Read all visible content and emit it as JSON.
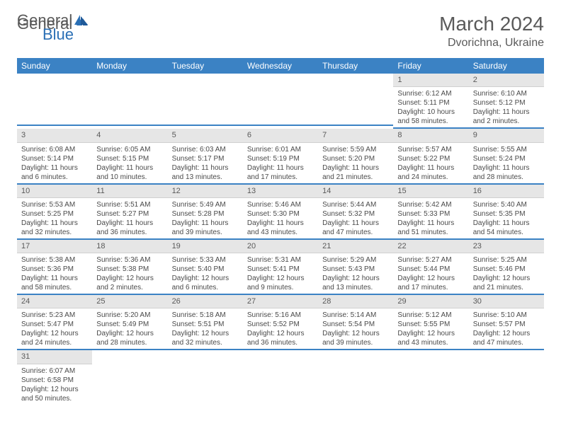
{
  "logo": {
    "word1": "General",
    "word2": "Blue"
  },
  "header": {
    "title": "March 2024",
    "location": "Dvorichna, Ukraine"
  },
  "colors": {
    "header_bg": "#3b82c4",
    "header_fg": "#ffffff",
    "daynum_bg": "#e6e6e6",
    "rule": "#3b82c4",
    "text": "#4a4a4a",
    "title": "#5a5a5a"
  },
  "weekdays": [
    "Sunday",
    "Monday",
    "Tuesday",
    "Wednesday",
    "Thursday",
    "Friday",
    "Saturday"
  ],
  "weeks": [
    [
      {
        "n": "",
        "lines": []
      },
      {
        "n": "",
        "lines": []
      },
      {
        "n": "",
        "lines": []
      },
      {
        "n": "",
        "lines": []
      },
      {
        "n": "",
        "lines": []
      },
      {
        "n": "1",
        "lines": [
          "Sunrise: 6:12 AM",
          "Sunset: 5:11 PM",
          "Daylight: 10 hours",
          "and 58 minutes."
        ]
      },
      {
        "n": "2",
        "lines": [
          "Sunrise: 6:10 AM",
          "Sunset: 5:12 PM",
          "Daylight: 11 hours",
          "and 2 minutes."
        ]
      }
    ],
    [
      {
        "n": "3",
        "lines": [
          "Sunrise: 6:08 AM",
          "Sunset: 5:14 PM",
          "Daylight: 11 hours",
          "and 6 minutes."
        ]
      },
      {
        "n": "4",
        "lines": [
          "Sunrise: 6:05 AM",
          "Sunset: 5:15 PM",
          "Daylight: 11 hours",
          "and 10 minutes."
        ]
      },
      {
        "n": "5",
        "lines": [
          "Sunrise: 6:03 AM",
          "Sunset: 5:17 PM",
          "Daylight: 11 hours",
          "and 13 minutes."
        ]
      },
      {
        "n": "6",
        "lines": [
          "Sunrise: 6:01 AM",
          "Sunset: 5:19 PM",
          "Daylight: 11 hours",
          "and 17 minutes."
        ]
      },
      {
        "n": "7",
        "lines": [
          "Sunrise: 5:59 AM",
          "Sunset: 5:20 PM",
          "Daylight: 11 hours",
          "and 21 minutes."
        ]
      },
      {
        "n": "8",
        "lines": [
          "Sunrise: 5:57 AM",
          "Sunset: 5:22 PM",
          "Daylight: 11 hours",
          "and 24 minutes."
        ]
      },
      {
        "n": "9",
        "lines": [
          "Sunrise: 5:55 AM",
          "Sunset: 5:24 PM",
          "Daylight: 11 hours",
          "and 28 minutes."
        ]
      }
    ],
    [
      {
        "n": "10",
        "lines": [
          "Sunrise: 5:53 AM",
          "Sunset: 5:25 PM",
          "Daylight: 11 hours",
          "and 32 minutes."
        ]
      },
      {
        "n": "11",
        "lines": [
          "Sunrise: 5:51 AM",
          "Sunset: 5:27 PM",
          "Daylight: 11 hours",
          "and 36 minutes."
        ]
      },
      {
        "n": "12",
        "lines": [
          "Sunrise: 5:49 AM",
          "Sunset: 5:28 PM",
          "Daylight: 11 hours",
          "and 39 minutes."
        ]
      },
      {
        "n": "13",
        "lines": [
          "Sunrise: 5:46 AM",
          "Sunset: 5:30 PM",
          "Daylight: 11 hours",
          "and 43 minutes."
        ]
      },
      {
        "n": "14",
        "lines": [
          "Sunrise: 5:44 AM",
          "Sunset: 5:32 PM",
          "Daylight: 11 hours",
          "and 47 minutes."
        ]
      },
      {
        "n": "15",
        "lines": [
          "Sunrise: 5:42 AM",
          "Sunset: 5:33 PM",
          "Daylight: 11 hours",
          "and 51 minutes."
        ]
      },
      {
        "n": "16",
        "lines": [
          "Sunrise: 5:40 AM",
          "Sunset: 5:35 PM",
          "Daylight: 11 hours",
          "and 54 minutes."
        ]
      }
    ],
    [
      {
        "n": "17",
        "lines": [
          "Sunrise: 5:38 AM",
          "Sunset: 5:36 PM",
          "Daylight: 11 hours",
          "and 58 minutes."
        ]
      },
      {
        "n": "18",
        "lines": [
          "Sunrise: 5:36 AM",
          "Sunset: 5:38 PM",
          "Daylight: 12 hours",
          "and 2 minutes."
        ]
      },
      {
        "n": "19",
        "lines": [
          "Sunrise: 5:33 AM",
          "Sunset: 5:40 PM",
          "Daylight: 12 hours",
          "and 6 minutes."
        ]
      },
      {
        "n": "20",
        "lines": [
          "Sunrise: 5:31 AM",
          "Sunset: 5:41 PM",
          "Daylight: 12 hours",
          "and 9 minutes."
        ]
      },
      {
        "n": "21",
        "lines": [
          "Sunrise: 5:29 AM",
          "Sunset: 5:43 PM",
          "Daylight: 12 hours",
          "and 13 minutes."
        ]
      },
      {
        "n": "22",
        "lines": [
          "Sunrise: 5:27 AM",
          "Sunset: 5:44 PM",
          "Daylight: 12 hours",
          "and 17 minutes."
        ]
      },
      {
        "n": "23",
        "lines": [
          "Sunrise: 5:25 AM",
          "Sunset: 5:46 PM",
          "Daylight: 12 hours",
          "and 21 minutes."
        ]
      }
    ],
    [
      {
        "n": "24",
        "lines": [
          "Sunrise: 5:23 AM",
          "Sunset: 5:47 PM",
          "Daylight: 12 hours",
          "and 24 minutes."
        ]
      },
      {
        "n": "25",
        "lines": [
          "Sunrise: 5:20 AM",
          "Sunset: 5:49 PM",
          "Daylight: 12 hours",
          "and 28 minutes."
        ]
      },
      {
        "n": "26",
        "lines": [
          "Sunrise: 5:18 AM",
          "Sunset: 5:51 PM",
          "Daylight: 12 hours",
          "and 32 minutes."
        ]
      },
      {
        "n": "27",
        "lines": [
          "Sunrise: 5:16 AM",
          "Sunset: 5:52 PM",
          "Daylight: 12 hours",
          "and 36 minutes."
        ]
      },
      {
        "n": "28",
        "lines": [
          "Sunrise: 5:14 AM",
          "Sunset: 5:54 PM",
          "Daylight: 12 hours",
          "and 39 minutes."
        ]
      },
      {
        "n": "29",
        "lines": [
          "Sunrise: 5:12 AM",
          "Sunset: 5:55 PM",
          "Daylight: 12 hours",
          "and 43 minutes."
        ]
      },
      {
        "n": "30",
        "lines": [
          "Sunrise: 5:10 AM",
          "Sunset: 5:57 PM",
          "Daylight: 12 hours",
          "and 47 minutes."
        ]
      }
    ],
    [
      {
        "n": "31",
        "lines": [
          "Sunrise: 6:07 AM",
          "Sunset: 6:58 PM",
          "Daylight: 12 hours",
          "and 50 minutes."
        ]
      },
      {
        "n": "",
        "lines": []
      },
      {
        "n": "",
        "lines": []
      },
      {
        "n": "",
        "lines": []
      },
      {
        "n": "",
        "lines": []
      },
      {
        "n": "",
        "lines": []
      },
      {
        "n": "",
        "lines": []
      }
    ]
  ]
}
